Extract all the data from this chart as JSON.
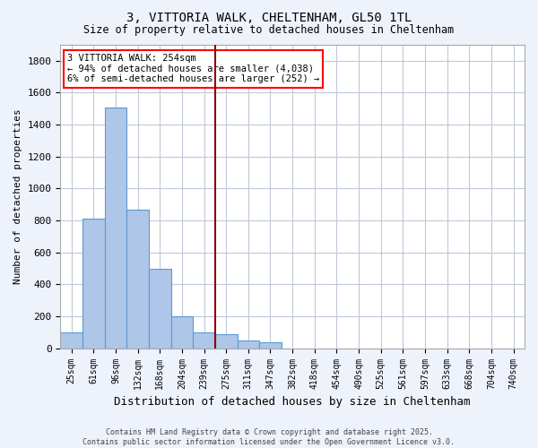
{
  "title_line1": "3, VITTORIA WALK, CHELTENHAM, GL50 1TL",
  "title_line2": "Size of property relative to detached houses in Cheltenham",
  "xlabel": "Distribution of detached houses by size in Cheltenham",
  "ylabel": "Number of detached properties",
  "bin_labels": [
    "25sqm",
    "61sqm",
    "96sqm",
    "132sqm",
    "168sqm",
    "204sqm",
    "239sqm",
    "275sqm",
    "311sqm",
    "347sqm",
    "382sqm",
    "418sqm",
    "454sqm",
    "490sqm",
    "525sqm",
    "561sqm",
    "597sqm",
    "633sqm",
    "668sqm",
    "704sqm",
    "740sqm"
  ],
  "bar_values": [
    100,
    810,
    1510,
    870,
    500,
    200,
    100,
    90,
    50,
    35,
    0,
    0,
    0,
    0,
    0,
    0,
    0,
    0,
    0,
    0,
    0
  ],
  "bar_color": "#aec6e8",
  "bar_edge_color": "#5b9bd5",
  "red_line_bin": 7,
  "ylim": [
    0,
    1900
  ],
  "yticks": [
    0,
    200,
    400,
    600,
    800,
    1000,
    1200,
    1400,
    1600,
    1800
  ],
  "annotation_text": "3 VITTORIA WALK: 254sqm\n← 94% of detached houses are smaller (4,038)\n6% of semi-detached houses are larger (252) →",
  "footer_line1": "Contains HM Land Registry data © Crown copyright and database right 2025.",
  "footer_line2": "Contains public sector information licensed under the Open Government Licence v3.0.",
  "bg_color": "#eef2fb",
  "plot_bg_color": "#ffffff",
  "grid_color": "#c0c8d8"
}
